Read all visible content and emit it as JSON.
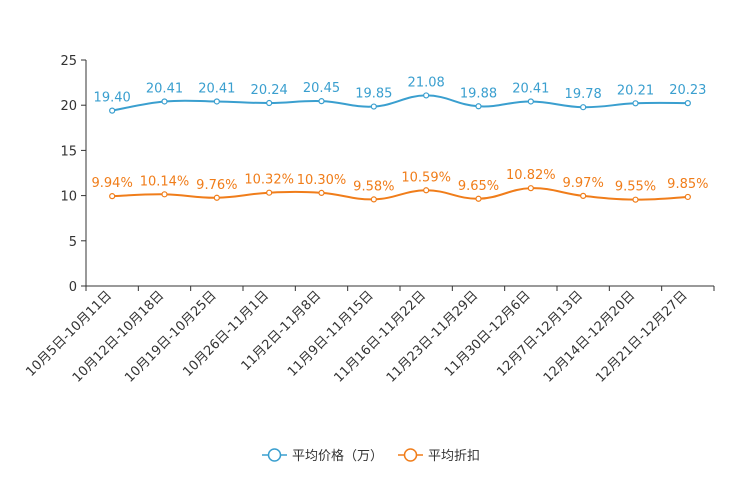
{
  "chart_data": {
    "type": "line",
    "title": "",
    "xlabel": "",
    "ylabel": "",
    "ylim": [
      0,
      25
    ],
    "yticks": [
      0,
      5,
      10,
      15,
      20,
      25
    ],
    "categories": [
      "10月5日-10月11日",
      "10月12日-10月18日",
      "10月19日-10月25日",
      "10月26日-11月1日",
      "11月2日-11月8日",
      "11月9日-11月15日",
      "11月16日-11月22日",
      "11月23日-11月29日",
      "11月30日-12月6日",
      "12月7日-12月13日",
      "12月14日-12月20日",
      "12月21日-12月27日"
    ],
    "series": [
      {
        "name": "平均价格（万）",
        "color": "#3a9fcf",
        "values": [
          19.4,
          20.41,
          20.41,
          20.24,
          20.45,
          19.85,
          21.08,
          19.88,
          20.41,
          19.78,
          20.21,
          20.23
        ],
        "labels": [
          "19.40",
          "20.41",
          "20.41",
          "20.24",
          "20.45",
          "19.85",
          "21.08",
          "19.88",
          "20.41",
          "19.78",
          "20.21",
          "20.23"
        ]
      },
      {
        "name": "平均折扣",
        "color": "#f07d1a",
        "values": [
          9.94,
          10.14,
          9.76,
          10.32,
          10.3,
          9.58,
          10.59,
          9.65,
          10.82,
          9.97,
          9.55,
          9.85
        ],
        "labels": [
          "9.94%",
          "10.14%",
          "9.76%",
          "10.32%",
          "10.30%",
          "9.58%",
          "10.59%",
          "9.65%",
          "10.82%",
          "9.97%",
          "9.55%",
          "9.85%"
        ]
      }
    ],
    "legend_position": "bottom-center",
    "grid": false
  }
}
